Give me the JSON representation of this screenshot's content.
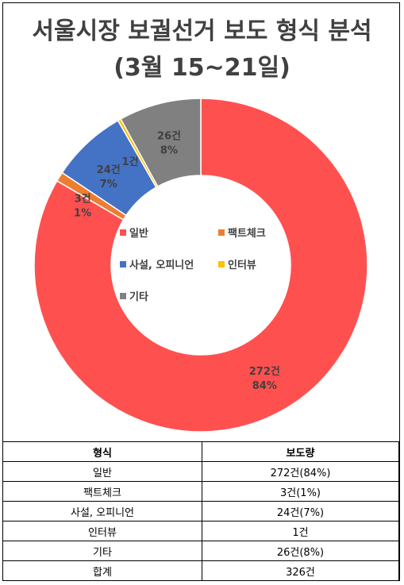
{
  "title_line1": "서울시장 보궐선거 보도 형식 분석",
  "title_line2": "(3월 15~21일)",
  "colors": {
    "general": "#FF5050",
    "factcheck": "#ED7D31",
    "editorial": "#4472C4",
    "interview": "#FFC000",
    "other": "#808080",
    "text": "#404040"
  },
  "chart_data": {
    "type": "pie",
    "donut": true,
    "categories": [
      "일반",
      "팩트체크",
      "사설, 오피니언",
      "인터뷰",
      "기타"
    ],
    "values": [
      272,
      3,
      24,
      1,
      26
    ],
    "count_labels": [
      "272건",
      "3건",
      "24건",
      "1건",
      "26건"
    ],
    "percent_labels": [
      "84%",
      "1%",
      "7%",
      "",
      "8%"
    ],
    "legend": [
      "일반",
      "팩트체크",
      "사설, 오피니언",
      "인터뷰",
      "기타"
    ],
    "legend_placement": "center"
  },
  "table": {
    "headers": [
      "형식",
      "보도량"
    ],
    "rows": [
      [
        "일반",
        "272건(84%)"
      ],
      [
        "팩트체크",
        "3건(1%)"
      ],
      [
        "사설, 오피니언",
        "24건(7%)"
      ],
      [
        "인터뷰",
        "1건"
      ],
      [
        "기타",
        "26건(8%)"
      ],
      [
        "합계",
        "326건"
      ]
    ]
  }
}
